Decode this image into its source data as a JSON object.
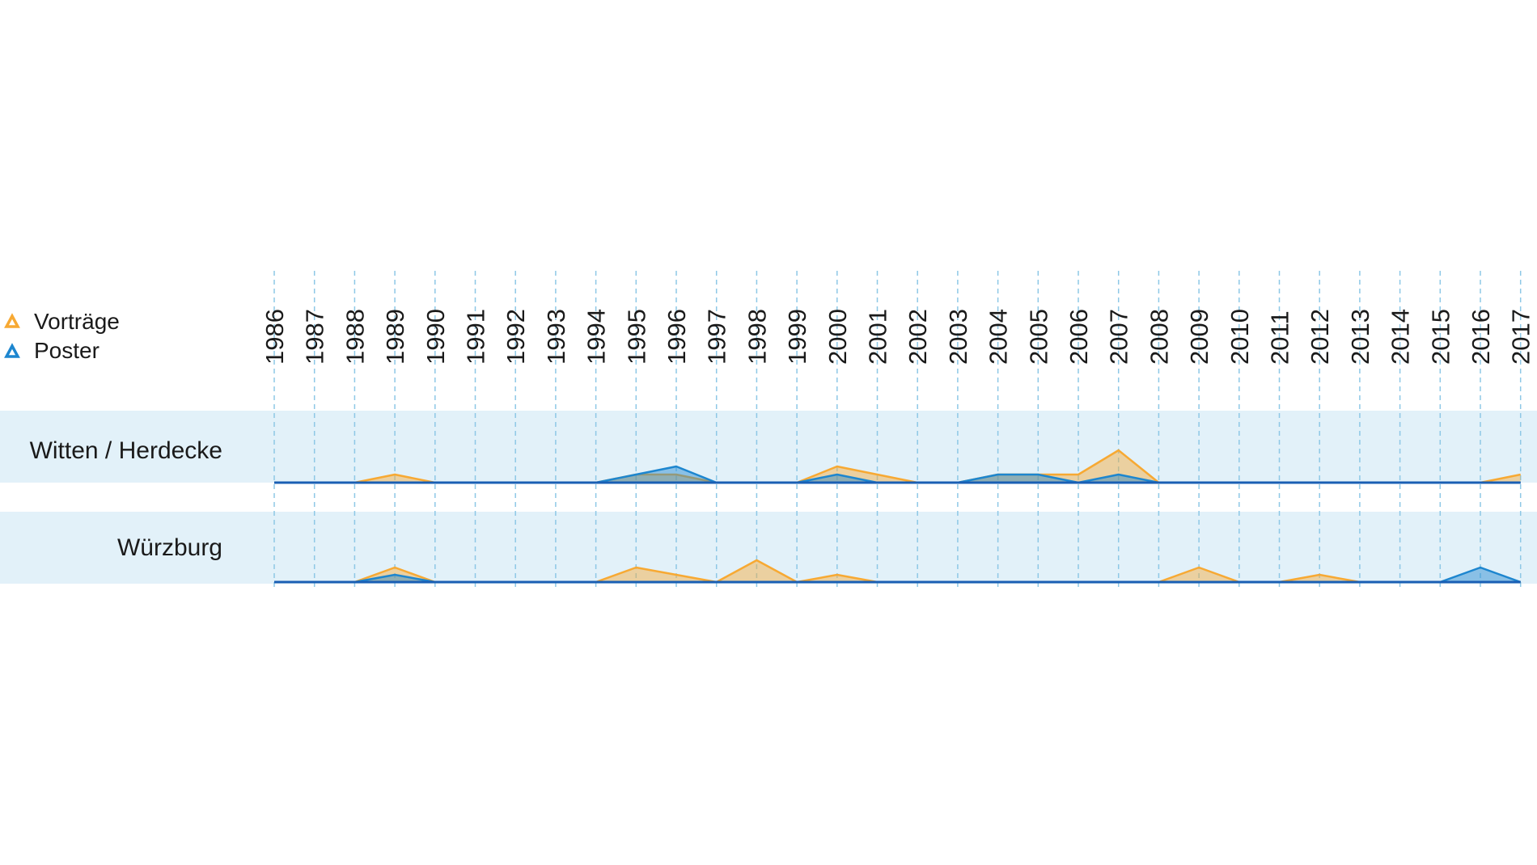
{
  "chart_data": {
    "type": "area",
    "years": [
      "1986",
      "1987",
      "1988",
      "1989",
      "1990",
      "1991",
      "1992",
      "1993",
      "1994",
      "1995",
      "1996",
      "1997",
      "1998",
      "1999",
      "2000",
      "2001",
      "2002",
      "2003",
      "2004",
      "2005",
      "2006",
      "2007",
      "2008",
      "2009",
      "2010",
      "2011",
      "2012",
      "2013",
      "2014",
      "2015",
      "2016",
      "2017"
    ],
    "legend": [
      {
        "label": "Vorträge",
        "color": "#f7a933",
        "icon": "triangle-outline-icon"
      },
      {
        "label": "Poster",
        "color": "#1d86cf",
        "icon": "triangle-outline-icon"
      }
    ],
    "rows": [
      {
        "label": "Witten / Herdecke",
        "series": [
          {
            "name": "Vorträge",
            "color": "#f7a933",
            "values": [
              0,
              0,
              0,
              1,
              0,
              0,
              0,
              0,
              0,
              1,
              1,
              0,
              0,
              0,
              2,
              1,
              0,
              0,
              1,
              1,
              1,
              4,
              0,
              0,
              0,
              0,
              0,
              0,
              0,
              0,
              0,
              1
            ]
          },
          {
            "name": "Poster",
            "color": "#1d86cf",
            "values": [
              0,
              0,
              0,
              0,
              0,
              0,
              0,
              0,
              0,
              1,
              2,
              0,
              0,
              0,
              1,
              0,
              0,
              0,
              1,
              1,
              0,
              1,
              0,
              0,
              0,
              0,
              0,
              0,
              0,
              0,
              0,
              0
            ]
          }
        ]
      },
      {
        "label": "Würzburg",
        "series": [
          {
            "name": "Vorträge",
            "color": "#f7a933",
            "values": [
              0,
              0,
              0,
              2,
              0,
              0,
              0,
              0,
              0,
              2,
              1,
              0,
              3,
              0,
              1,
              0,
              0,
              0,
              0,
              0,
              0,
              0,
              0,
              2,
              0,
              0,
              1,
              0,
              0,
              0,
              0,
              0
            ]
          },
          {
            "name": "Poster",
            "color": "#1d86cf",
            "values": [
              0,
              0,
              0,
              1,
              0,
              0,
              0,
              0,
              0,
              0,
              0,
              0,
              0,
              0,
              0,
              0,
              0,
              0,
              0,
              0,
              0,
              0,
              0,
              0,
              0,
              0,
              0,
              0,
              0,
              0,
              2,
              0
            ]
          }
        ]
      }
    ],
    "colors": {
      "band": "#e2f1f9",
      "gridline": "#8ec8e6",
      "baseline": "#1a5fb4"
    }
  }
}
